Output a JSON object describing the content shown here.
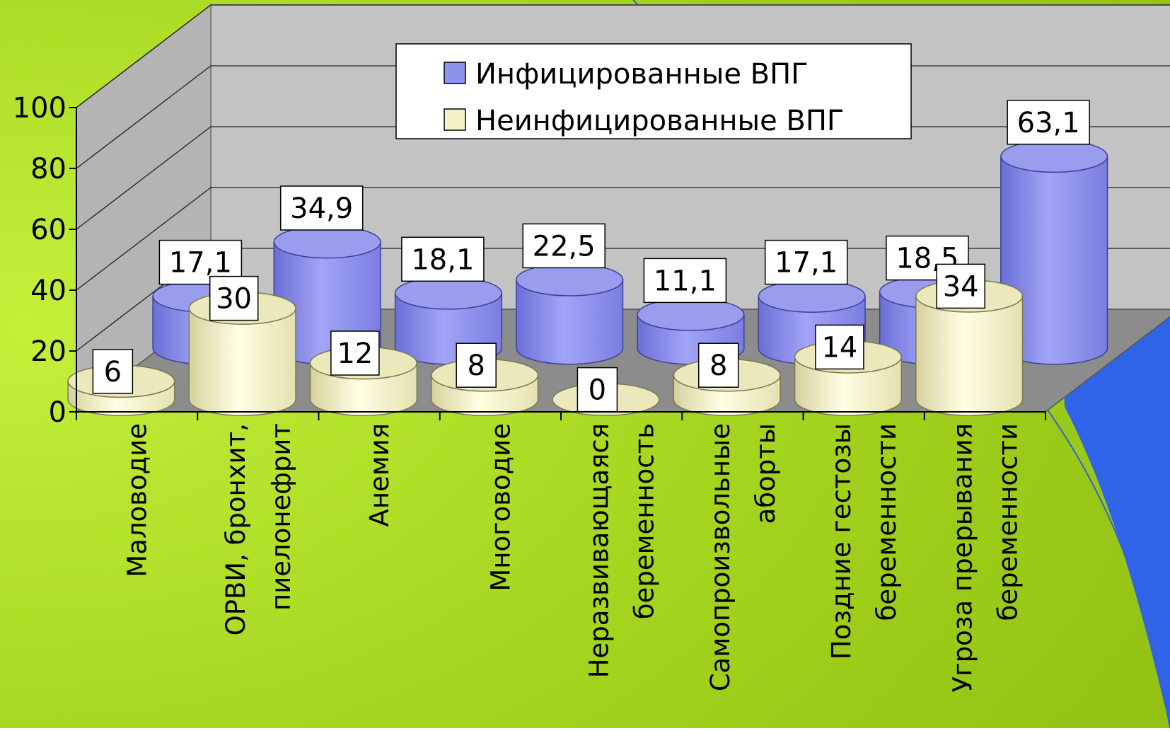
{
  "chart_data": {
    "type": "bar",
    "categories": [
      "Маловодие",
      "ОРВИ, бронхит, пиелонефрит",
      "Анемия",
      "Многоводие",
      "Неразвивающаяся беременность",
      "Самопроизвольные аборты",
      "Поздние гестозы беременности",
      "Угроза прерывания беременности"
    ],
    "category_lines": [
      [
        "Маловодие"
      ],
      [
        "ОРВИ, бронхит,",
        "пиелонефрит"
      ],
      [
        "Анемия"
      ],
      [
        "Многоводие"
      ],
      [
        "Неразвивающаяся",
        "беременность"
      ],
      [
        "Самопроизвольные",
        "аборты"
      ],
      [
        "Поздние гестозы",
        "беременности"
      ],
      [
        "Угроза прерывания",
        "беременности"
      ]
    ],
    "series": [
      {
        "name": "Инфицированные ВПГ",
        "values": [
          17.1,
          34.9,
          18.1,
          22.5,
          11.1,
          17.1,
          18.5,
          63.1
        ],
        "labels": [
          "17,1",
          "34,9",
          "18,1",
          "22,5",
          "11,1",
          "17,1",
          "18,5",
          "63,1"
        ],
        "color": "#8f92ea"
      },
      {
        "name": "Неинфицированные ВПГ",
        "values": [
          6,
          30,
          12,
          8,
          0,
          8,
          14,
          34
        ],
        "labels": [
          "6",
          "30",
          "12",
          "8",
          "0",
          "8",
          "14",
          "34"
        ],
        "color": "#f4f2c6"
      }
    ],
    "y_ticks": [
      "0",
      "20",
      "40",
      "60",
      "80",
      "100"
    ],
    "ylim": [
      0,
      100
    ],
    "grid": true,
    "legend_position": "top-center",
    "colors": {
      "background": "#a6d81f",
      "back_wall": "#c3c3c3",
      "floor": "#8c8c8c",
      "corner_accent": "#2f63e8"
    }
  }
}
